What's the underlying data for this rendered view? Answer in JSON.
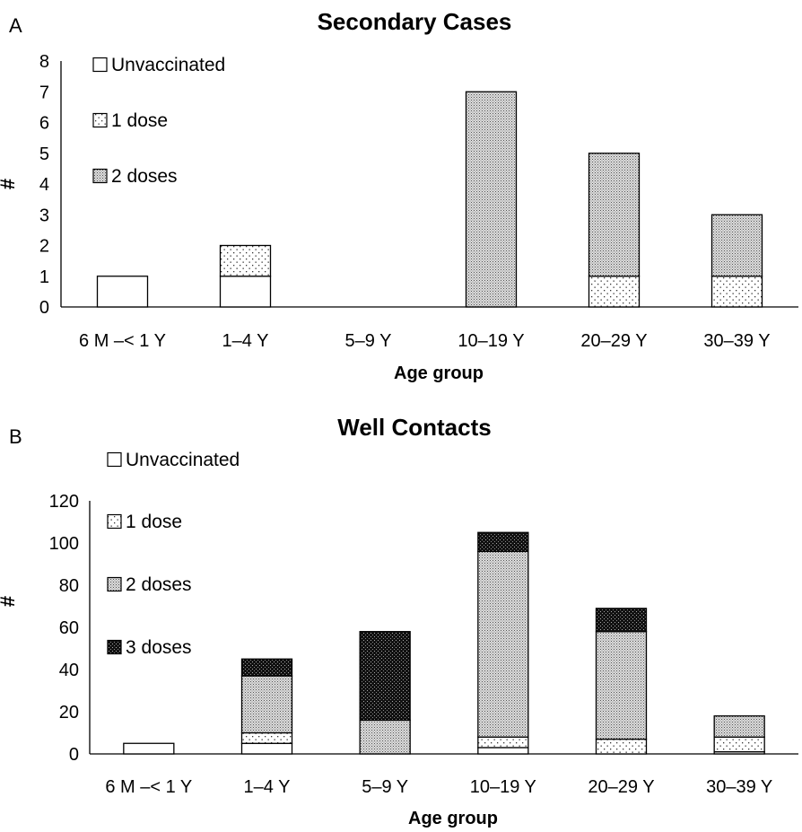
{
  "chart_data": [
    {
      "type": "bar",
      "stacked": true,
      "panel_label": "A",
      "title": "Secondary Cases",
      "xlabel": "Age group",
      "ylabel": "#",
      "ylim": [
        0,
        8
      ],
      "yticks": [
        "0",
        "1",
        "2",
        "3",
        "4",
        "5",
        "6",
        "7",
        "8"
      ],
      "categories": [
        "6 M –< 1 Y",
        "1–4 Y",
        "5–9 Y",
        "10–19 Y",
        "20–29 Y",
        "30–39 Y"
      ],
      "legend_position": "top-left",
      "series": [
        {
          "name": "Unvaccinated",
          "pattern": "white",
          "values": [
            1,
            1,
            0,
            0,
            0,
            0
          ]
        },
        {
          "name": "1 dose",
          "pattern": "dots",
          "values": [
            0,
            1,
            0,
            0,
            1,
            1
          ]
        },
        {
          "name": "2 doses",
          "pattern": "dense-dots",
          "values": [
            0,
            0,
            0,
            7,
            4,
            2
          ]
        }
      ]
    },
    {
      "type": "bar",
      "stacked": true,
      "panel_label": "B",
      "title": "Well Contacts",
      "xlabel": "Age group",
      "ylabel": "#",
      "ylim": [
        0,
        120
      ],
      "yticks": [
        "0",
        "20",
        "40",
        "60",
        "80",
        "100",
        "120"
      ],
      "categories": [
        "6 M –< 1 Y",
        "1–4 Y",
        "5–9 Y",
        "10–19 Y",
        "20–29 Y",
        "30–39 Y"
      ],
      "legend_position": "top-left",
      "series": [
        {
          "name": "Unvaccinated",
          "pattern": "white",
          "values": [
            5,
            5,
            0,
            3,
            0,
            1
          ]
        },
        {
          "name": "1 dose",
          "pattern": "dots",
          "values": [
            0,
            5,
            0,
            5,
            7,
            7
          ]
        },
        {
          "name": "2 doses",
          "pattern": "dense-dots",
          "values": [
            0,
            27,
            16,
            88,
            51,
            10
          ]
        },
        {
          "name": "3 doses",
          "pattern": "dark",
          "values": [
            0,
            8,
            42,
            9,
            11,
            0
          ]
        }
      ]
    }
  ]
}
